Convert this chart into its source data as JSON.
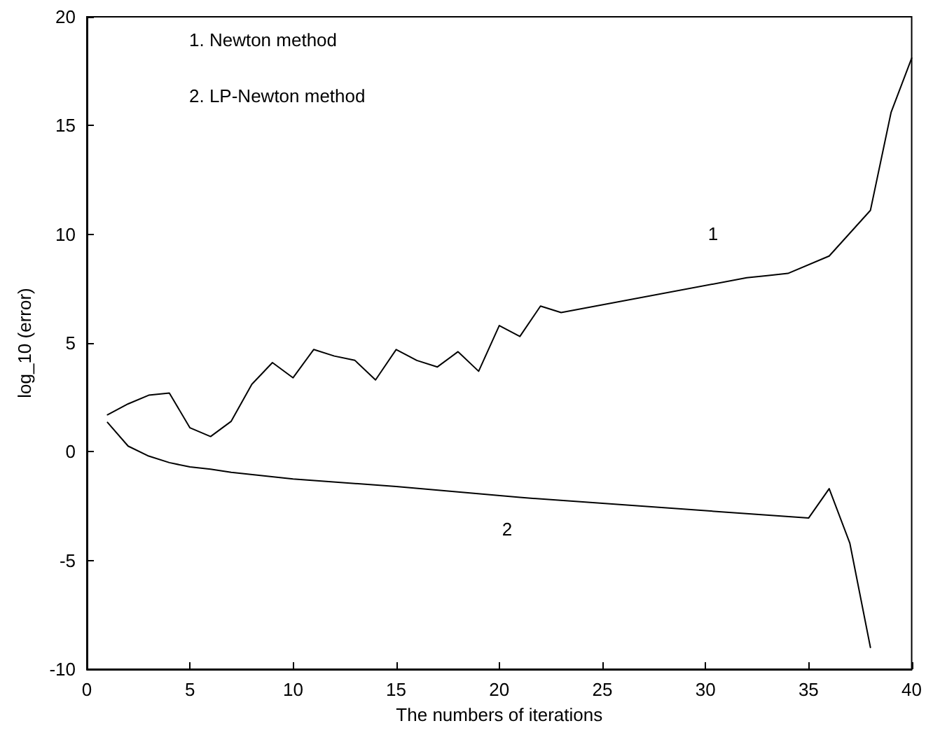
{
  "chart_data": {
    "type": "line",
    "xlabel": "The numbers of iterations",
    "ylabel": "log_10 (error)",
    "xlim": [
      0,
      40
    ],
    "xticks": [
      0,
      5,
      10,
      15,
      20,
      25,
      30,
      35,
      40
    ],
    "ylim": [
      -10,
      20
    ],
    "yticks": [
      -10,
      -5,
      0,
      5,
      10,
      15,
      20
    ],
    "grid": false,
    "marker": "none",
    "line_style": "solid",
    "annotations": [
      "1. Newton method",
      "2. LP-Newton method",
      "1",
      "2"
    ],
    "series": [
      {
        "color": "#000000",
        "x": [
          1,
          2,
          3,
          4,
          5,
          6,
          7,
          8,
          9,
          10,
          11,
          12,
          13,
          14,
          15,
          16,
          17,
          18,
          19,
          20,
          21,
          22,
          23,
          32,
          33,
          34,
          36,
          38,
          39,
          40
        ],
        "values": [
          1.7,
          2.2,
          2.6,
          2.7,
          1.1,
          0.7,
          1.4,
          3.1,
          4.1,
          3.4,
          4.7,
          4.4,
          4.2,
          3.3,
          4.7,
          4.2,
          3.9,
          4.6,
          3.7,
          5.8,
          5.3,
          6.7,
          6.4,
          8.0,
          8.1,
          8.2,
          9.0,
          11.1,
          15.6,
          18.1
        ]
      },
      {
        "color": "#000000",
        "x": [
          1,
          2,
          3,
          4,
          5,
          6,
          7,
          10,
          15,
          21,
          35,
          36,
          37,
          38
        ],
        "values": [
          1.35,
          0.26,
          -0.2,
          -0.5,
          -0.7,
          -0.8,
          -0.95,
          -1.25,
          -1.6,
          -2.1,
          -3.05,
          -1.7,
          -4.2,
          -9.0
        ]
      }
    ]
  }
}
